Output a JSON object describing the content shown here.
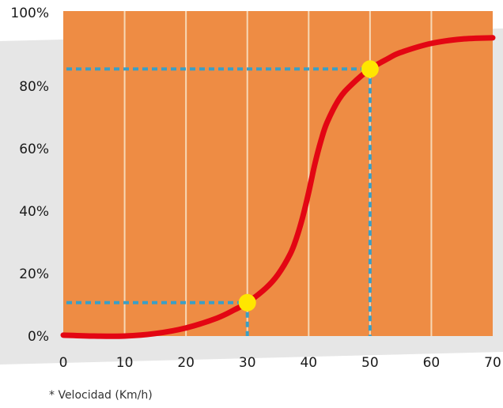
{
  "colors": {
    "background_band": "#e6e6e6",
    "plot_fill": "#ee8c44",
    "gridline": "#f7d8b6",
    "curve": "#e30613",
    "guide": "#3a9fc6",
    "marker": "#ffe600",
    "text": "#1a1a1a"
  },
  "chart_data": {
    "type": "line",
    "xlabel": "",
    "ylabel": "",
    "xlim": [
      0,
      70
    ],
    "ylim": [
      0,
      100
    ],
    "x_ticks": [
      0,
      10,
      20,
      30,
      40,
      50,
      60,
      70
    ],
    "x_tick_labels": [
      "0",
      "10",
      "20",
      "30",
      "40",
      "50",
      "60",
      "70"
    ],
    "y_ticks": [
      0,
      20,
      40,
      60,
      80,
      100
    ],
    "y_tick_labels": [
      "0%",
      "20%",
      "40%",
      "60%",
      "80%",
      "100%"
    ],
    "grid": "vertical",
    "series": [
      {
        "x": [
          0,
          5,
          10,
          15,
          20,
          25,
          28,
          30,
          33,
          35,
          37,
          38,
          39,
          40,
          41,
          42,
          43,
          45,
          47,
          50,
          53,
          55,
          60,
          65,
          70
        ],
        "values": [
          0.3,
          0,
          0,
          0.8,
          2.6,
          5.7,
          8.5,
          10.7,
          15.3,
          19.7,
          26.3,
          31.3,
          37.9,
          46,
          55,
          62.5,
          68.4,
          76,
          80.5,
          85.5,
          88.9,
          90.8,
          93.7,
          95.1,
          95.5
        ]
      }
    ],
    "highlights": [
      {
        "x": 30,
        "y": 10.7
      },
      {
        "x": 50,
        "y": 85.5
      }
    ],
    "footnote": "* Velocidad (Km/h)"
  }
}
